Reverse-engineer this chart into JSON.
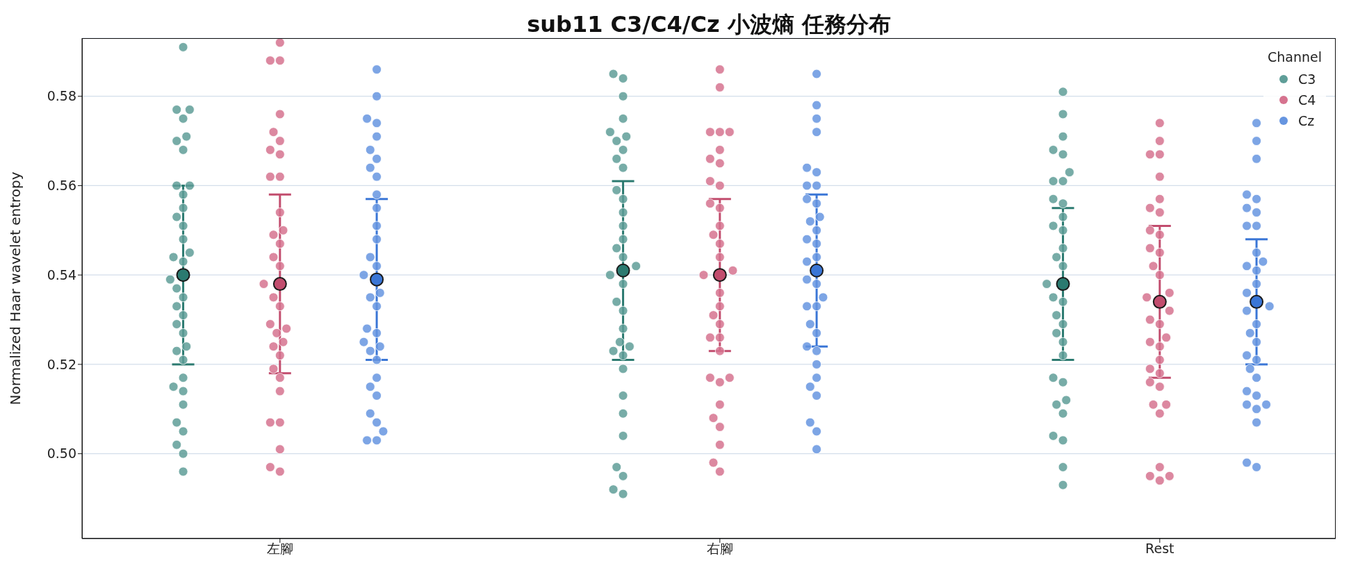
{
  "chart_data": {
    "type": "scatter",
    "title": "sub11 C3/C4/Cz 小波熵 任務分布",
    "ylabel": "Normalized Haar wavelet entropy",
    "legend_title": "Channel",
    "legend": "top right",
    "grid": "y",
    "marker": "circle",
    "categories": [
      "左腳",
      "右腳",
      "Rest"
    ],
    "ylim": [
      0.481,
      0.593
    ],
    "yticks": [
      {
        "value": 0.5,
        "label": "0.50"
      },
      0.52,
      0.54,
      0.56,
      0.58
    ],
    "series": [
      {
        "name": "C3",
        "color": "#5f9e98",
        "x": [
          "左腳",
          "左腳",
          "左腳",
          "左腳",
          "左腳",
          "左腳",
          "左腳",
          "左腳",
          "左腳",
          "左腳",
          "左腳",
          "左腳",
          "左腳",
          "左腳",
          "左腳",
          "左腳",
          "左腳",
          "左腳",
          "左腳",
          "左腳",
          "左腳",
          "左腳",
          "左腳",
          "左腳",
          "左腳",
          "左腳",
          "左腳",
          "左腳",
          "左腳",
          "左腳",
          "左腳",
          "左腳",
          "左腳",
          "左腳",
          "左腳",
          "左腳",
          "右腳",
          "右腳",
          "右腳",
          "右腳",
          "右腳",
          "右腳",
          "右腳",
          "右腳",
          "右腳",
          "右腳",
          "右腳",
          "右腳",
          "右腳",
          "右腳",
          "右腳",
          "右腳",
          "右腳",
          "右腳",
          "右腳",
          "右腳",
          "右腳",
          "右腳",
          "右腳",
          "右腳",
          "右腳",
          "右腳",
          "右腳",
          "右腳",
          "右腳",
          "右腳",
          "右腳",
          "右腳",
          "右腳",
          "右腳",
          "右腳",
          "Rest",
          "Rest",
          "Rest",
          "Rest",
          "Rest",
          "Rest",
          "Rest",
          "Rest",
          "Rest",
          "Rest",
          "Rest",
          "Rest",
          "Rest",
          "Rest",
          "Rest",
          "Rest",
          "Rest",
          "Rest",
          "Rest",
          "Rest",
          "Rest",
          "Rest",
          "Rest",
          "Rest",
          "Rest",
          "Rest",
          "Rest",
          "Rest",
          "Rest",
          "Rest",
          "Rest",
          "Rest",
          "Rest"
        ],
        "values": [
          0.591,
          0.577,
          0.575,
          0.577,
          0.57,
          0.571,
          0.568,
          0.56,
          0.56,
          0.558,
          0.555,
          0.553,
          0.551,
          0.548,
          0.545,
          0.544,
          0.543,
          0.539,
          0.537,
          0.533,
          0.535,
          0.529,
          0.531,
          0.527,
          0.523,
          0.524,
          0.521,
          0.517,
          0.515,
          0.511,
          0.507,
          0.505,
          0.502,
          0.5,
          0.496,
          0.514,
          0.585,
          0.584,
          0.58,
          0.575,
          0.572,
          0.571,
          0.57,
          0.566,
          0.568,
          0.564,
          0.559,
          0.557,
          0.554,
          0.551,
          0.548,
          0.546,
          0.542,
          0.544,
          0.54,
          0.538,
          0.534,
          0.532,
          0.528,
          0.525,
          0.524,
          0.523,
          0.522,
          0.519,
          0.513,
          0.509,
          0.504,
          0.497,
          0.495,
          0.492,
          0.491,
          0.581,
          0.576,
          0.571,
          0.568,
          0.567,
          0.561,
          0.563,
          0.561,
          0.556,
          0.557,
          0.553,
          0.551,
          0.55,
          0.546,
          0.542,
          0.544,
          0.538,
          0.535,
          0.534,
          0.529,
          0.531,
          0.527,
          0.525,
          0.522,
          0.517,
          0.516,
          0.511,
          0.512,
          0.509,
          0.503,
          0.504,
          0.497,
          0.493
        ]
      },
      {
        "name": "C4",
        "color": "#d6738f",
        "x": [
          "左腳",
          "左腳",
          "左腳",
          "左腳",
          "左腳",
          "左腳",
          "左腳",
          "左腳",
          "左腳",
          "左腳",
          "左腳",
          "左腳",
          "左腳",
          "左腳",
          "左腳",
          "左腳",
          "左腳",
          "左腳",
          "左腳",
          "左腳",
          "左腳",
          "左腳",
          "左腳",
          "左腳",
          "左腳",
          "左腳",
          "左腳",
          "左腳",
          "左腳",
          "左腳",
          "左腳",
          "左腳",
          "左腳",
          "右腳",
          "右腳",
          "右腳",
          "右腳",
          "右腳",
          "右腳",
          "右腳",
          "右腳",
          "右腳",
          "右腳",
          "右腳",
          "右腳",
          "右腳",
          "右腳",
          "右腳",
          "右腳",
          "右腳",
          "右腳",
          "右腳",
          "右腳",
          "右腳",
          "右腳",
          "右腳",
          "右腳",
          "右腳",
          "右腳",
          "右腳",
          "右腳",
          "右腳",
          "右腳",
          "右腳",
          "右腳",
          "右腳",
          "右腳",
          "Rest",
          "Rest",
          "Rest",
          "Rest",
          "Rest",
          "Rest",
          "Rest",
          "Rest",
          "Rest",
          "Rest",
          "Rest",
          "Rest",
          "Rest",
          "Rest",
          "Rest",
          "Rest",
          "Rest",
          "Rest",
          "Rest",
          "Rest",
          "Rest",
          "Rest",
          "Rest",
          "Rest",
          "Rest",
          "Rest",
          "Rest",
          "Rest",
          "Rest",
          "Rest",
          "Rest",
          "Rest",
          "Rest",
          "Rest"
        ],
        "values": [
          0.592,
          0.588,
          0.588,
          0.568,
          0.576,
          0.57,
          0.572,
          0.567,
          0.562,
          0.562,
          0.554,
          0.549,
          0.547,
          0.55,
          0.544,
          0.538,
          0.542,
          0.535,
          0.533,
          0.529,
          0.527,
          0.528,
          0.524,
          0.522,
          0.519,
          0.517,
          0.514,
          0.507,
          0.507,
          0.501,
          0.497,
          0.496,
          0.525,
          0.586,
          0.582,
          0.572,
          0.572,
          0.572,
          0.568,
          0.566,
          0.565,
          0.561,
          0.56,
          0.556,
          0.555,
          0.549,
          0.551,
          0.547,
          0.544,
          0.541,
          0.54,
          0.536,
          0.533,
          0.531,
          0.529,
          0.526,
          0.526,
          0.523,
          0.517,
          0.517,
          0.516,
          0.511,
          0.508,
          0.506,
          0.502,
          0.496,
          0.498,
          0.574,
          0.57,
          0.567,
          0.567,
          0.562,
          0.557,
          0.555,
          0.554,
          0.55,
          0.549,
          0.546,
          0.545,
          0.542,
          0.54,
          0.536,
          0.535,
          0.532,
          0.53,
          0.529,
          0.525,
          0.524,
          0.526,
          0.521,
          0.518,
          0.519,
          0.515,
          0.516,
          0.511,
          0.511,
          0.509,
          0.495,
          0.495,
          0.497,
          0.494
        ]
      },
      {
        "name": "Cz",
        "color": "#6695e0",
        "x": [
          "左腳",
          "左腳",
          "左腳",
          "左腳",
          "左腳",
          "左腳",
          "左腳",
          "左腳",
          "左腳",
          "左腳",
          "左腳",
          "左腳",
          "左腳",
          "左腳",
          "左腳",
          "左腳",
          "左腳",
          "左腳",
          "左腳",
          "左腳",
          "左腳",
          "左腳",
          "左腳",
          "左腳",
          "左腳",
          "左腳",
          "左腳",
          "左腳",
          "左腳",
          "左腳",
          "左腳",
          "左腳",
          "左腳",
          "右腳",
          "右腳",
          "右腳",
          "右腳",
          "右腳",
          "右腳",
          "右腳",
          "右腳",
          "右腳",
          "右腳",
          "右腳",
          "右腳",
          "右腳",
          "右腳",
          "右腳",
          "右腳",
          "右腳",
          "右腳",
          "右腳",
          "右腳",
          "右腳",
          "右腳",
          "右腳",
          "右腳",
          "右腳",
          "右腳",
          "右腳",
          "右腳",
          "右腳",
          "右腳",
          "右腳",
          "右腳",
          "右腳",
          "Rest",
          "Rest",
          "Rest",
          "Rest",
          "Rest",
          "Rest",
          "Rest",
          "Rest",
          "Rest",
          "Rest",
          "Rest",
          "Rest",
          "Rest",
          "Rest",
          "Rest",
          "Rest",
          "Rest",
          "Rest",
          "Rest",
          "Rest",
          "Rest",
          "Rest",
          "Rest",
          "Rest",
          "Rest",
          "Rest",
          "Rest",
          "Rest",
          "Rest",
          "Rest",
          "Rest",
          "Rest"
        ],
        "values": [
          0.586,
          0.58,
          0.575,
          0.574,
          0.571,
          0.568,
          0.566,
          0.562,
          0.564,
          0.558,
          0.555,
          0.551,
          0.548,
          0.542,
          0.544,
          0.54,
          0.536,
          0.533,
          0.535,
          0.527,
          0.528,
          0.525,
          0.524,
          0.523,
          0.521,
          0.517,
          0.515,
          0.513,
          0.509,
          0.507,
          0.503,
          0.503,
          0.505,
          0.585,
          0.578,
          0.575,
          0.572,
          0.564,
          0.563,
          0.56,
          0.56,
          0.557,
          0.556,
          0.553,
          0.552,
          0.55,
          0.548,
          0.547,
          0.544,
          0.543,
          0.539,
          0.538,
          0.535,
          0.533,
          0.533,
          0.529,
          0.527,
          0.524,
          0.523,
          0.52,
          0.517,
          0.513,
          0.515,
          0.507,
          0.505,
          0.501,
          0.574,
          0.57,
          0.566,
          0.557,
          0.558,
          0.555,
          0.554,
          0.551,
          0.551,
          0.545,
          0.543,
          0.542,
          0.541,
          0.538,
          0.536,
          0.533,
          0.532,
          0.529,
          0.527,
          0.525,
          0.521,
          0.522,
          0.519,
          0.517,
          0.514,
          0.511,
          0.513,
          0.51,
          0.507,
          0.497,
          0.498,
          0.511
        ]
      },
      {
        "color": "#2b7a70",
        "x": [
          "左腳",
          "右腳",
          "Rest"
        ],
        "values": [
          0.54,
          0.541,
          0.538
        ],
        "errors": [
          0.02,
          0.02,
          0.017
        ]
      },
      {
        "color": "#c24d6e",
        "x": [
          "左腳",
          "右腳",
          "Rest"
        ],
        "values": [
          0.538,
          0.54,
          0.534
        ],
        "errors": [
          0.02,
          0.017,
          0.017
        ]
      },
      {
        "color": "#3a76d6",
        "x": [
          "左腳",
          "右腳",
          "Rest"
        ],
        "values": [
          0.539,
          0.541,
          0.534
        ],
        "errors": [
          0.018,
          0.017,
          0.014
        ]
      }
    ]
  }
}
